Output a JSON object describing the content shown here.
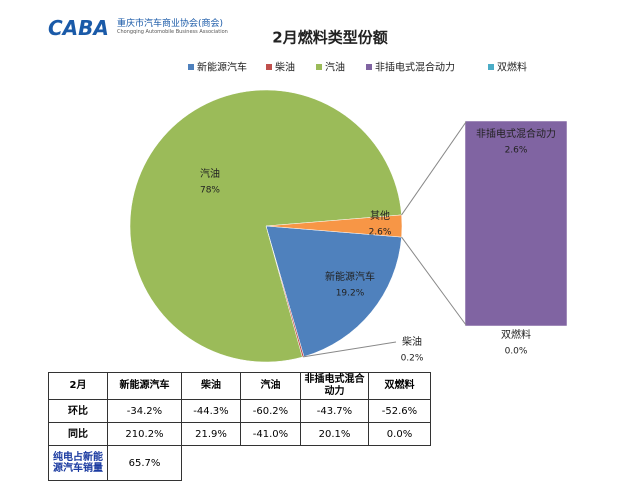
{
  "header": {
    "logo": "CABA",
    "org_name": "重庆市汽车商业协会(商会)",
    "org_name_en": "Chongqing Automobile Business Association"
  },
  "chart_data": {
    "type": "pie-of-bar",
    "title": "2月燃料类型份额",
    "categories": [
      "新能源汽车",
      "柴油",
      "汽油",
      "其他"
    ],
    "values": [
      19.2,
      0.2,
      78,
      2.6
    ],
    "value_labels": [
      "19.2%",
      "0.2%",
      "78%",
      "2.6%"
    ],
    "colors": [
      "#4f81bd",
      "#c0504d",
      "#9bbb59",
      "#f79646"
    ],
    "bar": {
      "categories": [
        "非插电式混合动力",
        "双燃料"
      ],
      "values": [
        2.6,
        0.0
      ],
      "value_labels": [
        "2.6%",
        "0.0%"
      ],
      "colors": [
        "#8064a2",
        "#4bacc6"
      ]
    },
    "legend": "top"
  },
  "table": {
    "header": [
      "2月",
      "新能源汽车",
      "柴油",
      "汽油",
      "非插电式混合动力",
      "双燃料"
    ],
    "rows": [
      [
        "环比",
        "-34.2%",
        "-44.3%",
        "-60.2%",
        "-43.7%",
        "-52.6%"
      ],
      [
        "同比",
        "210.2%",
        "21.9%",
        "-41.0%",
        "20.1%",
        "0.0%"
      ],
      [
        "纯电占新能源汽车销量",
        "65.7%"
      ]
    ]
  }
}
